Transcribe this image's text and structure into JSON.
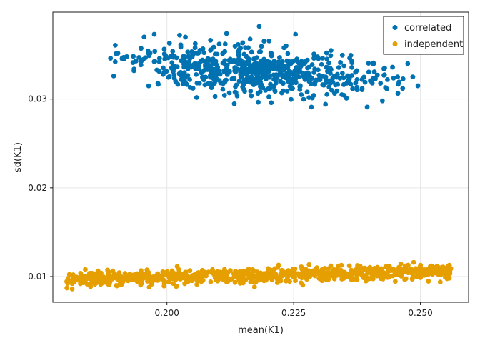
{
  "chart_data": {
    "type": "scatter",
    "title": "",
    "xlabel": "mean(K1)",
    "ylabel": "sd(K1)",
    "xlim": [
      0.1775,
      0.2595
    ],
    "ylim": [
      0.0071,
      0.0398
    ],
    "xticks": [
      0.2,
      0.225,
      0.25
    ],
    "xtick_labels": [
      "0.200",
      "0.225",
      "0.250"
    ],
    "yticks": [
      0.01,
      0.02,
      0.03
    ],
    "ytick_labels": [
      "0.01",
      "0.02",
      "0.03"
    ],
    "grid": true,
    "legend_position": "top-right",
    "series": [
      {
        "name": "correlated",
        "color": "#0072b2",
        "points": [
          [
            0.1895,
            0.0326
          ],
          [
            0.1915,
            0.0347
          ],
          [
            0.1935,
            0.0332
          ],
          [
            0.1955,
            0.037
          ],
          [
            0.1965,
            0.0349
          ],
          [
            0.1975,
            0.0373
          ],
          [
            0.1985,
            0.0342
          ],
          [
            0.1995,
            0.0351
          ],
          [
            0.2005,
            0.0363
          ],
          [
            0.2015,
            0.0348
          ],
          [
            0.2025,
            0.0372
          ],
          [
            0.2035,
            0.0346
          ],
          [
            0.2045,
            0.0322
          ],
          [
            0.2055,
            0.034
          ],
          [
            0.2065,
            0.0355
          ],
          [
            0.2075,
            0.0316
          ],
          [
            0.2085,
            0.0338
          ],
          [
            0.2095,
            0.0303
          ],
          [
            0.2105,
            0.0328
          ],
          [
            0.2115,
            0.0362
          ],
          [
            0.2125,
            0.0345
          ],
          [
            0.2135,
            0.0314
          ],
          [
            0.2145,
            0.0333
          ],
          [
            0.2155,
            0.0358
          ],
          [
            0.2165,
            0.0309
          ],
          [
            0.2175,
            0.0341
          ],
          [
            0.2182,
            0.0382
          ],
          [
            0.2195,
            0.0327
          ],
          [
            0.2205,
            0.0352
          ],
          [
            0.2215,
            0.0318
          ],
          [
            0.2225,
            0.0336
          ],
          [
            0.2235,
            0.036
          ],
          [
            0.2245,
            0.0312
          ],
          [
            0.2255,
            0.0344
          ],
          [
            0.2265,
            0.0305
          ],
          [
            0.2275,
            0.0329
          ],
          [
            0.2285,
            0.0291
          ],
          [
            0.2295,
            0.0321
          ],
          [
            0.2305,
            0.0339
          ],
          [
            0.2315,
            0.0352
          ],
          [
            0.2325,
            0.031
          ],
          [
            0.2335,
            0.0326
          ],
          [
            0.2345,
            0.0305
          ],
          [
            0.2355,
            0.0318
          ],
          [
            0.2365,
            0.0341
          ],
          [
            0.2375,
            0.0322
          ],
          [
            0.2385,
            0.0312
          ],
          [
            0.2395,
            0.0291
          ],
          [
            0.2405,
            0.0318
          ],
          [
            0.2415,
            0.0327
          ],
          [
            0.2425,
            0.0298
          ],
          [
            0.2435,
            0.0322
          ],
          [
            0.2445,
            0.0336
          ],
          [
            0.2455,
            0.0325
          ],
          [
            0.2465,
            0.0312
          ],
          [
            0.2475,
            0.034
          ],
          [
            0.2485,
            0.0325
          ],
          [
            0.2495,
            0.0315
          ],
          [
            0.204,
            0.0336
          ],
          [
            0.212,
            0.033
          ],
          [
            0.22,
            0.0333
          ],
          [
            0.226,
            0.0325
          ],
          [
            0.233,
            0.0326
          ],
          [
            0.207,
            0.0344
          ],
          [
            0.215,
            0.0338
          ],
          [
            0.222,
            0.0327
          ],
          [
            0.229,
            0.033
          ],
          [
            0.236,
            0.0323
          ],
          [
            0.201,
            0.0341
          ],
          [
            0.21,
            0.0336
          ]
        ],
        "distribution": {
          "mean_x": 0.2175,
          "sd_x": 0.0115,
          "x_range": [
            0.188,
            0.25
          ],
          "mean_y": 0.0331,
          "sd_y": 0.0013,
          "slope_dy_dx": -0.045,
          "count": 620
        }
      },
      {
        "name": "independent",
        "color": "#e69f00",
        "points": [
          [
            0.1805,
            0.0098
          ],
          [
            0.1815,
            0.0102
          ],
          [
            0.184,
            0.0093
          ],
          [
            0.187,
            0.0104
          ],
          [
            0.19,
            0.009
          ],
          [
            0.193,
            0.0101
          ],
          [
            0.1965,
            0.0088
          ],
          [
            0.2,
            0.0105
          ],
          [
            0.2035,
            0.0092
          ],
          [
            0.207,
            0.0107
          ],
          [
            0.21,
            0.0095
          ],
          [
            0.2135,
            0.0106
          ],
          [
            0.2165,
            0.0094
          ],
          [
            0.22,
            0.0109
          ],
          [
            0.2235,
            0.0095
          ],
          [
            0.2265,
            0.0111
          ],
          [
            0.23,
            0.0098
          ],
          [
            0.2335,
            0.0108
          ],
          [
            0.237,
            0.0097
          ],
          [
            0.24,
            0.011
          ],
          [
            0.2435,
            0.0099
          ],
          [
            0.247,
            0.0112
          ],
          [
            0.2495,
            0.0101
          ],
          [
            0.252,
            0.0106
          ],
          [
            0.254,
            0.0102
          ],
          [
            0.2552,
            0.011
          ],
          [
            0.256,
            0.0109
          ],
          [
            0.253,
            0.0104
          ],
          [
            0.1885,
            0.0097
          ],
          [
            0.206,
            0.0099
          ],
          [
            0.2245,
            0.0103
          ],
          [
            0.241,
            0.0104
          ],
          [
            0.199,
            0.01
          ],
          [
            0.215,
            0.0101
          ],
          [
            0.232,
            0.0102
          ]
        ],
        "distribution": {
          "x_range": [
            0.1802,
            0.2562
          ],
          "y_at_xmin": 0.0097,
          "y_at_xmax": 0.0106,
          "sd_y": 0.0004,
          "count": 820
        }
      }
    ]
  }
}
